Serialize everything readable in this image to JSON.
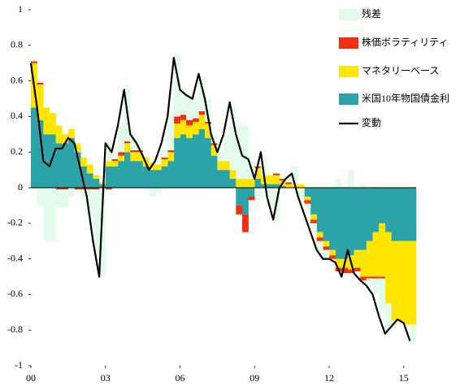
{
  "chart_data": {
    "type": "stacked_bar",
    "x": [
      2000,
      2000.25,
      2000.5,
      2000.75,
      2001,
      2001.25,
      2001.5,
      2001.75,
      2002,
      2002.25,
      2002.5,
      2002.75,
      2003,
      2003.25,
      2003.5,
      2003.75,
      2004,
      2004.25,
      2004.5,
      2004.75,
      2005,
      2005.25,
      2005.5,
      2005.75,
      2006,
      2006.25,
      2006.5,
      2006.75,
      2007,
      2007.25,
      2007.5,
      2007.75,
      2008,
      2008.25,
      2008.5,
      2008.75,
      2009,
      2009.25,
      2009.5,
      2009.75,
      2010,
      2010.25,
      2010.5,
      2010.75,
      2011,
      2011.25,
      2011.5,
      2011.75,
      2012,
      2012.25,
      2012.5,
      2012.75,
      2013,
      2013.25,
      2013.5,
      2013.75,
      2014,
      2014.25,
      2014.5,
      2014.75,
      2015,
      2015.25
    ],
    "xlim": [
      2000,
      2015.5
    ],
    "xticks": [
      {
        "value": 2000,
        "label": "00"
      },
      {
        "value": 2003,
        "label": "03"
      },
      {
        "value": 2006,
        "label": "06"
      },
      {
        "value": 2009,
        "label": "09"
      },
      {
        "value": 2012,
        "label": "12"
      },
      {
        "value": 2015,
        "label": "15"
      }
    ],
    "ylim": [
      -1,
      1
    ],
    "yticks": [
      -1,
      -0.8,
      -0.6,
      -0.4,
      -0.2,
      0,
      0.2,
      0.4,
      0.6,
      0.8,
      1
    ],
    "legend": "upper right",
    "series": [
      {
        "name": "残差",
        "type": "bar",
        "color": "#e2fbea",
        "values": [
          0,
          -0.1,
          -0.3,
          -0.3,
          -0.1,
          -0.1,
          -0.05,
          0,
          -0.05,
          -0.15,
          -0.35,
          -0.5,
          0.1,
          0.05,
          0.15,
          0.3,
          0.1,
          0.05,
          0,
          -0.05,
          -0.03,
          0.05,
          0.2,
          0.35,
          0.15,
          0.15,
          0.12,
          0.2,
          0.13,
          0.05,
          0.05,
          0.15,
          0.35,
          0.3,
          0.3,
          0.1,
          -0.05,
          0.1,
          -0.1,
          -0.2,
          0,
          0.05,
          0.1,
          -0.05,
          -0.05,
          -0.05,
          -0.05,
          -0.05,
          0,
          0.05,
          -0.02,
          0.1,
          0,
          0.02,
          -0.02,
          -0.08,
          -0.2,
          -0.15,
          -0.03,
          0,
          0,
          -0.1
        ]
      },
      {
        "name": "株価ボラティリティ",
        "type": "bar",
        "color": "#f03010",
        "values": [
          0.01,
          0.01,
          0,
          0,
          -0.01,
          -0.01,
          0,
          -0.01,
          -0.01,
          -0.01,
          -0.01,
          0,
          -0.01,
          0.01,
          0.02,
          0.01,
          0.01,
          0.01,
          0,
          0,
          0,
          0.01,
          0.01,
          0.04,
          0.03,
          0.03,
          0.02,
          0.02,
          0.01,
          0.01,
          0,
          0,
          0,
          -0.05,
          -0.1,
          -0.02,
          0.01,
          0,
          0,
          0.01,
          0.01,
          0.01,
          0,
          0,
          -0.02,
          -0.02,
          -0.02,
          -0.02,
          -0.02,
          -0.02,
          -0.03,
          -0.02,
          -0.02,
          -0.02,
          -0.01,
          -0.01,
          -0.01,
          0,
          0,
          0,
          0,
          0
        ]
      },
      {
        "name": "マネタリーベース",
        "type": "bar",
        "color": "#ffe600",
        "values": [
          0.25,
          0.2,
          0.15,
          0.12,
          0.1,
          0.05,
          0.05,
          0.05,
          0.05,
          0.05,
          0.02,
          0.01,
          0.03,
          0.03,
          0.03,
          0.05,
          0.05,
          0.05,
          0.05,
          0.04,
          0.03,
          0.04,
          0.05,
          0.08,
          0.08,
          0.07,
          0.07,
          0.08,
          0.08,
          0.06,
          0.05,
          0.05,
          0.05,
          0.05,
          0.05,
          0.05,
          0.06,
          0.05,
          0.05,
          0.05,
          0.03,
          0.02,
          0.02,
          0.02,
          -0.02,
          -0.03,
          -0.03,
          -0.03,
          -0.03,
          -0.05,
          -0.05,
          -0.08,
          -0.1,
          -0.15,
          -0.2,
          -0.25,
          -0.3,
          -0.4,
          -0.45,
          -0.45,
          -0.47,
          -0.47
        ]
      },
      {
        "name": "米国10年物国債金利",
        "type": "bar",
        "color": "#2ba3a8",
        "values": [
          0.45,
          0.38,
          0.3,
          0.3,
          0.25,
          0.25,
          0.28,
          0.2,
          0.12,
          0.08,
          0.05,
          0.02,
          0.12,
          0.12,
          0.15,
          0.2,
          0.15,
          0.15,
          0.12,
          0.1,
          0.1,
          0.12,
          0.15,
          0.28,
          0.3,
          0.28,
          0.3,
          0.33,
          0.28,
          0.18,
          0.1,
          0.1,
          0.05,
          -0.1,
          -0.15,
          -0.05,
          0.05,
          0.02,
          0.02,
          0.02,
          0.01,
          0,
          0,
          0,
          -0.05,
          -0.15,
          -0.25,
          -0.3,
          -0.35,
          -0.4,
          -0.4,
          -0.38,
          -0.35,
          -0.35,
          -0.3,
          -0.25,
          -0.2,
          -0.25,
          -0.3,
          -0.3,
          -0.3,
          -0.3
        ]
      },
      {
        "name": "変動",
        "type": "line",
        "color": "#000000",
        "values": [
          0.7,
          0.45,
          0.15,
          0.12,
          0.22,
          0.22,
          0.28,
          0.25,
          0.1,
          -0.05,
          -0.3,
          -0.5,
          0.25,
          0.2,
          0.35,
          0.55,
          0.3,
          0.25,
          0.18,
          0.1,
          0.15,
          0.25,
          0.4,
          0.73,
          0.55,
          0.52,
          0.5,
          0.64,
          0.5,
          0.3,
          0.2,
          0.3,
          0.48,
          0.3,
          0.18,
          0.16,
          0.05,
          0.2,
          -0.05,
          -0.18,
          0,
          0.05,
          0.08,
          -0.05,
          -0.15,
          -0.25,
          -0.35,
          -0.4,
          -0.4,
          -0.42,
          -0.5,
          -0.35,
          -0.48,
          -0.52,
          -0.55,
          -0.6,
          -0.72,
          -0.82,
          -0.78,
          -0.74,
          -0.76,
          -0.86
        ]
      }
    ]
  }
}
